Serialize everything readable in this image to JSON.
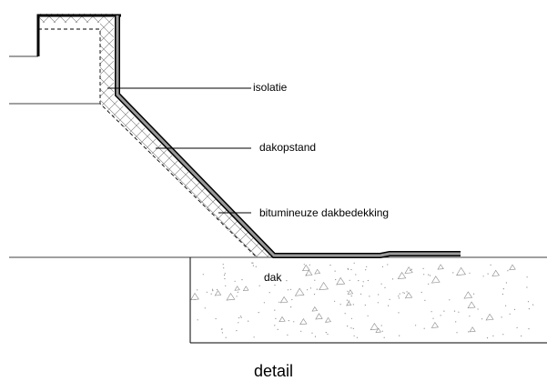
{
  "labels": {
    "insulation": "isolatie",
    "upstand": "dakopstand",
    "membrane": "bitumineuze dakbedekking",
    "roof": "dak"
  },
  "caption": "detail",
  "colors": {
    "line": "#000000",
    "membrane": "#9a9a9a",
    "hatch": "#555555",
    "concrete_speck": "#8a8a8a"
  }
}
